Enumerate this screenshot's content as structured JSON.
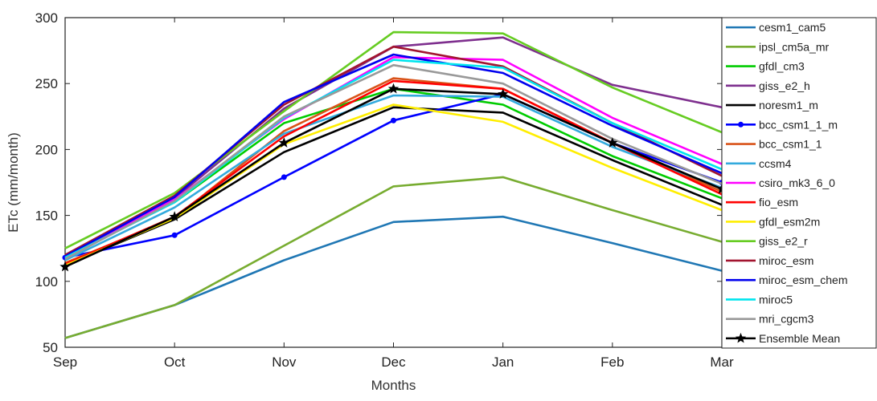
{
  "chart_data": {
    "type": "line",
    "title": "",
    "xlabel": "Months",
    "ylabel": "ETc (mm/month)",
    "categories": [
      "Sep",
      "Oct",
      "Nov",
      "Dec",
      "Jan",
      "Feb",
      "Mar"
    ],
    "ylim": [
      50,
      300
    ],
    "yticks": [
      50,
      100,
      150,
      200,
      250,
      300
    ],
    "grid": false,
    "legend_position": "right",
    "series": [
      {
        "name": "cesm1_cam5",
        "color": "#1f77b4",
        "values": [
          57,
          82,
          116,
          145,
          149,
          129,
          108
        ],
        "marker": "none"
      },
      {
        "name": "ipsl_cm5a_mr",
        "color": "#77ac30",
        "values": [
          57,
          82,
          127,
          172,
          179,
          154,
          130
        ],
        "marker": "none"
      },
      {
        "name": "gfdl_cm3",
        "color": "#00cc00",
        "values": [
          120,
          160,
          220,
          246,
          234,
          195,
          163
        ],
        "marker": "none"
      },
      {
        "name": "giss_e2_h",
        "color": "#7e2f8e",
        "values": [
          118,
          163,
          231,
          278,
          285,
          249,
          232
        ],
        "marker": "none"
      },
      {
        "name": "noresm1_m",
        "color": "#000000",
        "values": [
          112,
          147,
          198,
          232,
          228,
          192,
          158
        ],
        "marker": "none"
      },
      {
        "name": "bcc_csm1_1_m",
        "color": "#0000ff",
        "values": [
          118,
          135,
          179,
          222,
          242,
          205,
          175
        ],
        "marker": "dot"
      },
      {
        "name": "bcc_csm1_1",
        "color": "#d95319",
        "values": [
          114,
          148,
          214,
          254,
          246,
          205,
          168
        ],
        "marker": "none"
      },
      {
        "name": "ccsm4",
        "color": "#33aadd",
        "values": [
          116,
          156,
          212,
          241,
          240,
          202,
          171
        ],
        "marker": "none"
      },
      {
        "name": "csiro_mk3_6_0",
        "color": "#ff00ff",
        "values": [
          119,
          162,
          223,
          270,
          268,
          224,
          189
        ],
        "marker": "none"
      },
      {
        "name": "fio_esm",
        "color": "#ff0000",
        "values": [
          113,
          149,
          210,
          252,
          246,
          205,
          166
        ],
        "marker": "none"
      },
      {
        "name": "gfdl_esm2m",
        "color": "#ffee00",
        "values": [
          112,
          148,
          204,
          234,
          221,
          186,
          154
        ],
        "marker": "none"
      },
      {
        "name": "giss_e2_r",
        "color": "#66cc22",
        "values": [
          125,
          167,
          229,
          289,
          288,
          247,
          213
        ],
        "marker": "none"
      },
      {
        "name": "miroc_esm",
        "color": "#a2142f",
        "values": [
          120,
          165,
          234,
          278,
          263,
          220,
          180
        ],
        "marker": "none"
      },
      {
        "name": "miroc_esm_chem",
        "color": "#0000ee",
        "values": [
          119,
          164,
          236,
          272,
          258,
          218,
          182
        ],
        "marker": "none"
      },
      {
        "name": "miroc5",
        "color": "#00e5ee",
        "values": [
          118,
          160,
          224,
          268,
          262,
          220,
          185
        ],
        "marker": "none"
      },
      {
        "name": "mri_cgcm3",
        "color": "#999999",
        "values": [
          117,
          161,
          225,
          264,
          250,
          208,
          174
        ],
        "marker": "none"
      },
      {
        "name": "Ensemble Mean",
        "color": "#000000",
        "values": [
          111,
          149,
          205,
          246,
          242,
          205,
          170
        ],
        "marker": "star"
      }
    ]
  }
}
